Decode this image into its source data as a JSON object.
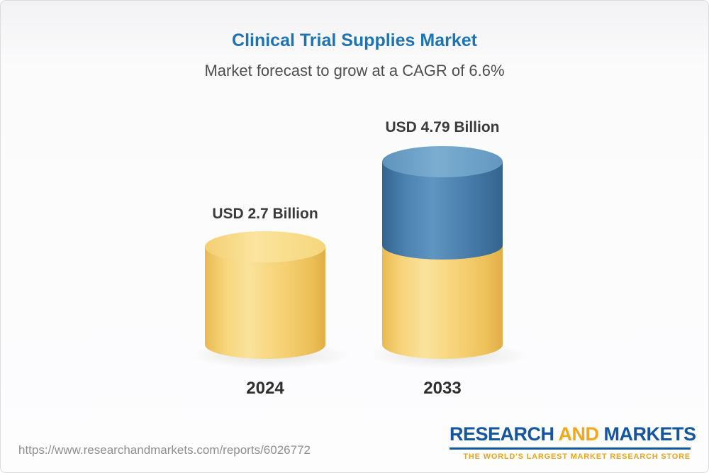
{
  "header": {
    "title": "Clinical Trial Supplies Market",
    "subtitle": "Market forecast to grow at a CAGR of 6.6%"
  },
  "chart_data": {
    "type": "bar",
    "subtype": "3d-cylinder",
    "title": "Clinical Trial Supplies Market",
    "subtitle": "Market forecast to grow at a CAGR of 6.6%",
    "cagr_percent": 6.6,
    "unit": "USD Billion",
    "categories": [
      "2024",
      "2033"
    ],
    "values": [
      2.7,
      4.79
    ],
    "value_labels": [
      "USD 2.7 Billion",
      "USD 4.79 Billion"
    ],
    "xlabel": "",
    "ylabel": "",
    "grid": false,
    "legend": false,
    "bar_colors": [
      {
        "category": "2024",
        "body": "#F5CF6C",
        "top_ellipse": "#F9E09A"
      },
      {
        "category": "2033",
        "body_bottom": "#F5CF6C",
        "body_top": "#4A7EAB",
        "top_ellipse": "#6FA3C8"
      }
    ],
    "colors": {
      "title_blue": "#1D74B5",
      "label_text": "#3A3A3A"
    }
  },
  "footer": {
    "url": "https://www.researchandmarkets.com/reports/6026772",
    "logo": {
      "word_research": "RESEARCH",
      "word_and": "AND",
      "word_markets": "MARKETS",
      "tagline": "THE WORLD'S LARGEST MARKET RESEARCH STORE"
    }
  }
}
